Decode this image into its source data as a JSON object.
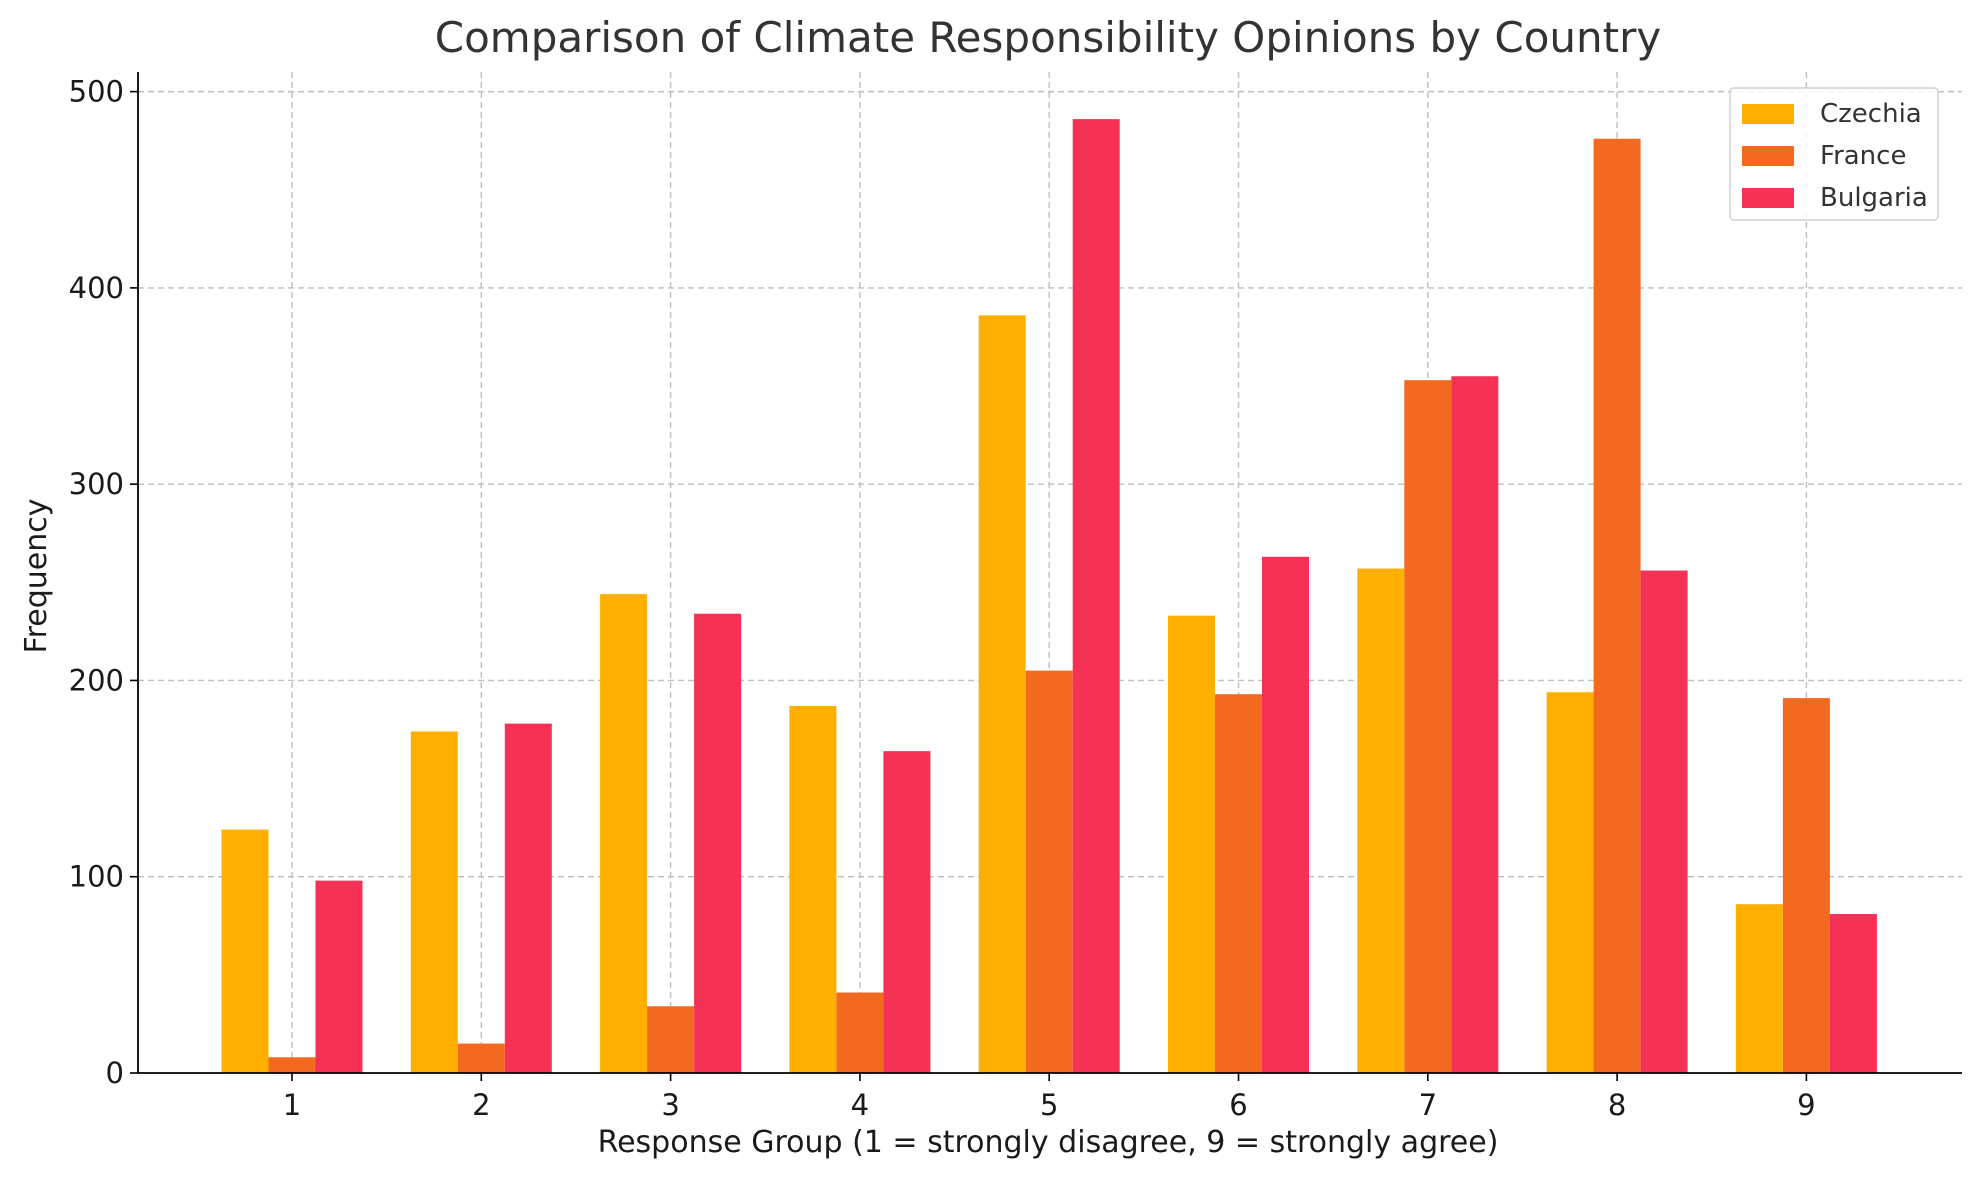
{
  "chart_data": {
    "type": "bar",
    "title": "Comparison of Climate Responsibility Opinions by Country",
    "xlabel": "Response Group (1 = strongly disagree, 9 = strongly agree)",
    "ylabel": "Frequency",
    "categories": [
      "1",
      "2",
      "3",
      "4",
      "5",
      "6",
      "7",
      "8",
      "9"
    ],
    "ylim": [
      0,
      510
    ],
    "yticks": [
      0,
      100,
      200,
      300,
      400,
      500
    ],
    "grid": true,
    "legend_position": "top-right",
    "series": [
      {
        "name": "Czechia",
        "color": "#FFAF00",
        "values": [
          124,
          174,
          244,
          187,
          386,
          233,
          257,
          194,
          86
        ]
      },
      {
        "name": "France",
        "color": "#F46920",
        "values": [
          8,
          15,
          34,
          41,
          205,
          193,
          353,
          476,
          191
        ]
      },
      {
        "name": "Bulgaria",
        "color": "#F53255",
        "values": [
          98,
          178,
          234,
          164,
          486,
          263,
          355,
          256,
          81
        ]
      }
    ]
  }
}
